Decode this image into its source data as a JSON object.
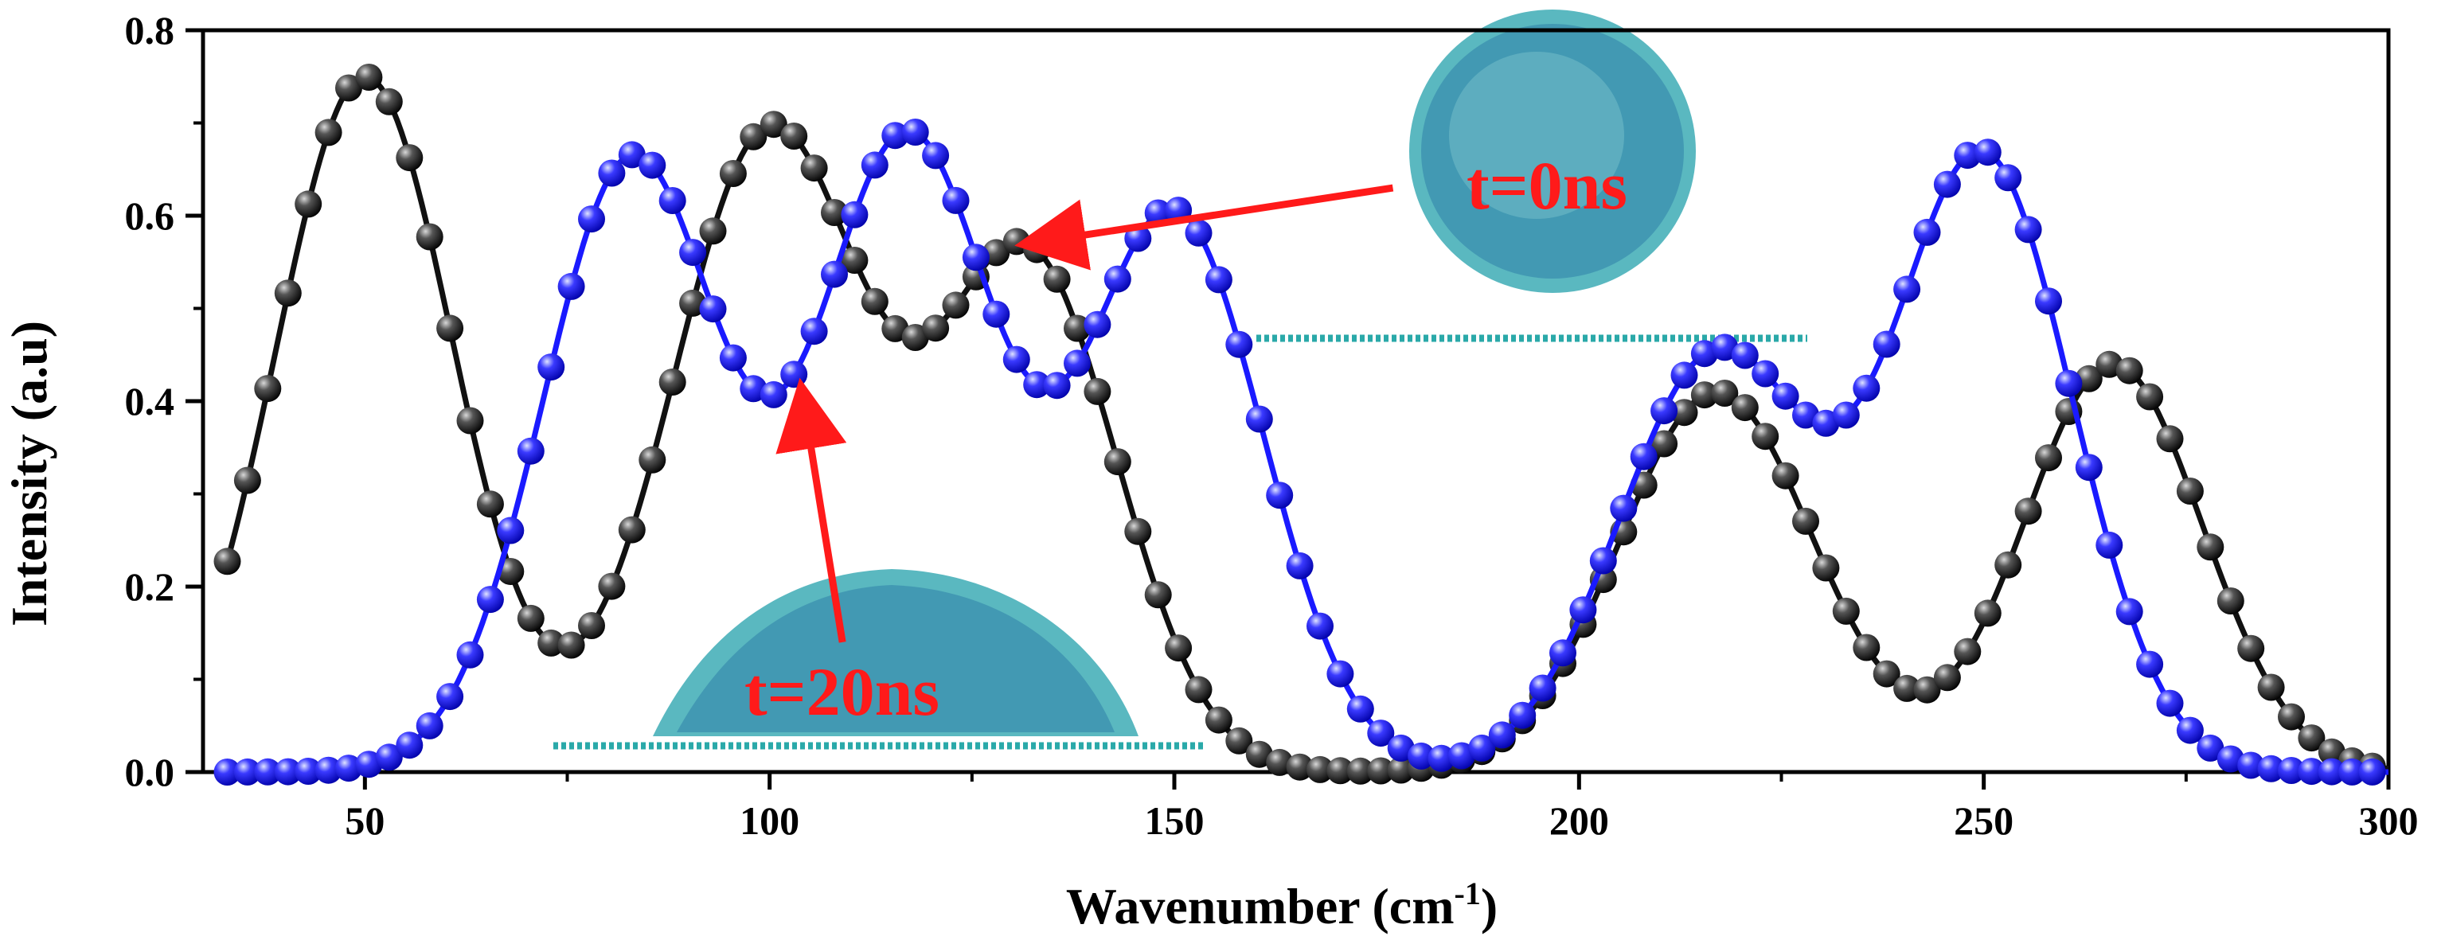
{
  "chart_data": {
    "type": "scatter",
    "title": "",
    "xlabel": "Wavenumber (cm",
    "xlabel_sup": "-1",
    "xlabel_close": ")",
    "ylabel": "Intensity (a.u)",
    "xlim": [
      30,
      300
    ],
    "ylim": [
      0,
      0.8
    ],
    "x_ticks": [
      50,
      100,
      150,
      200,
      250,
      300
    ],
    "y_ticks": [
      0.0,
      0.2,
      0.4,
      0.6,
      0.8
    ],
    "y_tick_labels": [
      "0.0",
      "0.2",
      "0.4",
      "0.6",
      "0.8"
    ],
    "grid": false,
    "x_start": 33,
    "x_step": 2.5,
    "series": [
      {
        "color": "#111111",
        "gaussians": [
          {
            "center": 50,
            "height": 0.75,
            "width": 11
          },
          {
            "center": 100,
            "height": 0.69,
            "width": 12
          },
          {
            "center": 132,
            "height": 0.55,
            "width": 11
          },
          {
            "center": 217,
            "height": 0.41,
            "width": 12
          },
          {
            "center": 266,
            "height": 0.44,
            "width": 11
          }
        ]
      },
      {
        "color": "#1a1aff",
        "gaussians": [
          {
            "center": 83,
            "height": 0.66,
            "width": 11
          },
          {
            "center": 117,
            "height": 0.68,
            "width": 11
          },
          {
            "center": 150,
            "height": 0.6,
            "width": 11
          },
          {
            "center": 217,
            "height": 0.45,
            "width": 12
          },
          {
            "center": 250,
            "height": 0.66,
            "width": 11
          }
        ]
      }
    ],
    "annotations": [
      {
        "text": "t=0ns",
        "arrow_to_x": 132,
        "arrow_to_y": 0.57,
        "arrow_from_x": 177,
        "arrow_from_y": 0.63
      },
      {
        "text": "t=20ns",
        "arrow_to_x": 104,
        "arrow_to_y": 0.41,
        "arrow_from_x": 109,
        "arrow_from_y": 0.14
      }
    ]
  }
}
